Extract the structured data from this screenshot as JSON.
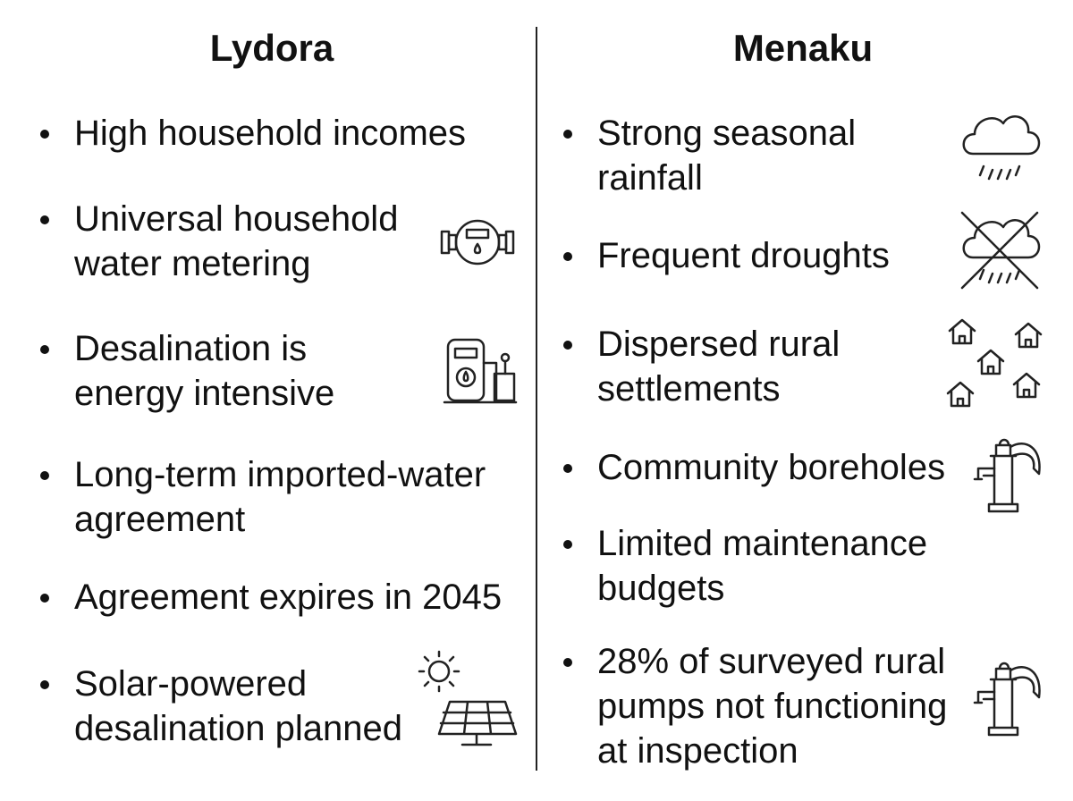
{
  "columns": [
    {
      "title": "Lydora",
      "items": [
        "High household incomes",
        "Universal household water metering",
        "Desalination is energy intensive",
        "Long-term imported-water agreement",
        "Agreement expires in 2045",
        "Solar-powered desalination planned"
      ]
    },
    {
      "title": "Menaku",
      "items": [
        "Strong seasonal rainfall",
        "Frequent droughts",
        "Dispersed rural settlements",
        "Community boreholes",
        "Limited maintenance budgets",
        "28% of surveyed rural pumps not functioning at inspection"
      ]
    }
  ]
}
